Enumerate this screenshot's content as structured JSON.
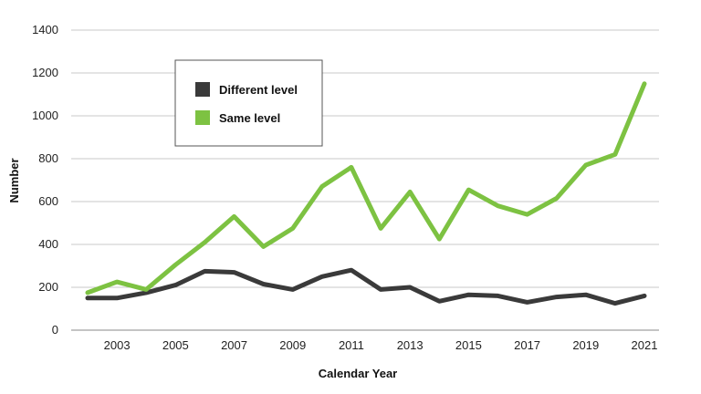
{
  "chart_data": {
    "type": "line",
    "title": "",
    "xlabel": "Calendar Year",
    "ylabel": "Number",
    "ylim": [
      0,
      1400
    ],
    "yticks": [
      0,
      200,
      400,
      600,
      800,
      1000,
      1200,
      1400
    ],
    "xticks": [
      2003,
      2005,
      2007,
      2009,
      2011,
      2013,
      2015,
      2017,
      2019,
      2021
    ],
    "x": [
      2002,
      2003,
      2004,
      2005,
      2006,
      2007,
      2008,
      2009,
      2010,
      2011,
      2012,
      2013,
      2014,
      2015,
      2016,
      2017,
      2018,
      2019,
      2020,
      2021
    ],
    "series": [
      {
        "name": "Different level",
        "color": "#3a3a3a",
        "values": [
          150,
          150,
          175,
          210,
          275,
          270,
          215,
          190,
          250,
          280,
          190,
          200,
          135,
          165,
          160,
          130,
          155,
          165,
          125,
          160
        ]
      },
      {
        "name": "Same level",
        "color": "#7dc242",
        "values": [
          175,
          225,
          190,
          305,
          410,
          530,
          390,
          475,
          670,
          760,
          475,
          645,
          425,
          655,
          580,
          540,
          615,
          770,
          820,
          1150
        ]
      }
    ],
    "grid": true,
    "legend_position": "top-left"
  }
}
